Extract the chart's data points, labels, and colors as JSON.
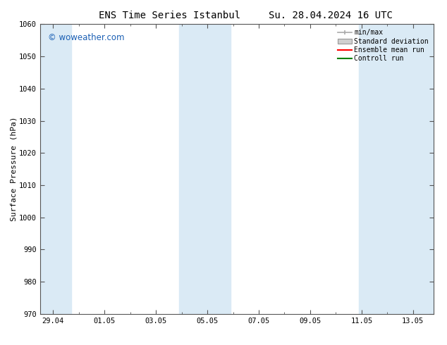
{
  "title_left": "ENS Time Series Istanbul",
  "title_right": "Su. 28.04.2024 16 UTC",
  "ylabel": "Surface Pressure (hPa)",
  "ylim": [
    970,
    1060
  ],
  "yticks": [
    970,
    980,
    990,
    1000,
    1010,
    1020,
    1030,
    1040,
    1050,
    1060
  ],
  "xtick_labels": [
    "29.04",
    "01.05",
    "03.05",
    "05.05",
    "07.05",
    "09.05",
    "11.05",
    "13.05"
  ],
  "xtick_positions": [
    0,
    2,
    4,
    6,
    8,
    10,
    12,
    14
  ],
  "xlim": [
    -0.5,
    14.8
  ],
  "shaded_bands": [
    {
      "x_start": -0.5,
      "x_end": 0.7,
      "color": "#daeaf5"
    },
    {
      "x_start": 4.9,
      "x_end": 6.9,
      "color": "#daeaf5"
    },
    {
      "x_start": 11.9,
      "x_end": 14.8,
      "color": "#daeaf5"
    }
  ],
  "legend_labels": [
    "min/max",
    "Standard deviation",
    "Ensemble mean run",
    "Controll run"
  ],
  "legend_line_colors": [
    "#aaaaaa",
    "#cccccc",
    "#ff0000",
    "#008000"
  ],
  "watermark_text": "© woweather.com",
  "watermark_color": "#1a5fb4",
  "background_color": "#ffffff",
  "title_fontsize": 10,
  "axis_label_fontsize": 8,
  "tick_fontsize": 7.5,
  "legend_fontsize": 7,
  "font_family": "DejaVu Sans Mono"
}
